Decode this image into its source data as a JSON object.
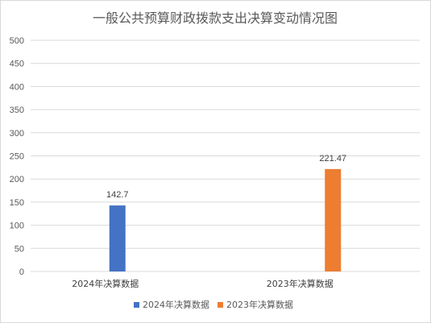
{
  "chart_data": {
    "type": "bar",
    "title": "一般公共预算财政拨款支出决算变动情况图",
    "xlabel": "",
    "ylabel": "",
    "categories": [
      "2024年决算数据",
      "2023年决算数据"
    ],
    "series": [
      {
        "name": "2024年决算数据",
        "color": "#4472c4",
        "values": [
          142.7,
          null
        ]
      },
      {
        "name": "2023年决算数据",
        "color": "#ed7d31",
        "values": [
          null,
          221.47
        ]
      }
    ],
    "data_labels": [
      "142.7",
      "221.47"
    ],
    "ylim": [
      0,
      500
    ],
    "yticks": [
      "0",
      "50",
      "100",
      "150",
      "200",
      "250",
      "300",
      "350",
      "400",
      "450",
      "500"
    ],
    "grid": true,
    "legend_position": "bottom"
  }
}
